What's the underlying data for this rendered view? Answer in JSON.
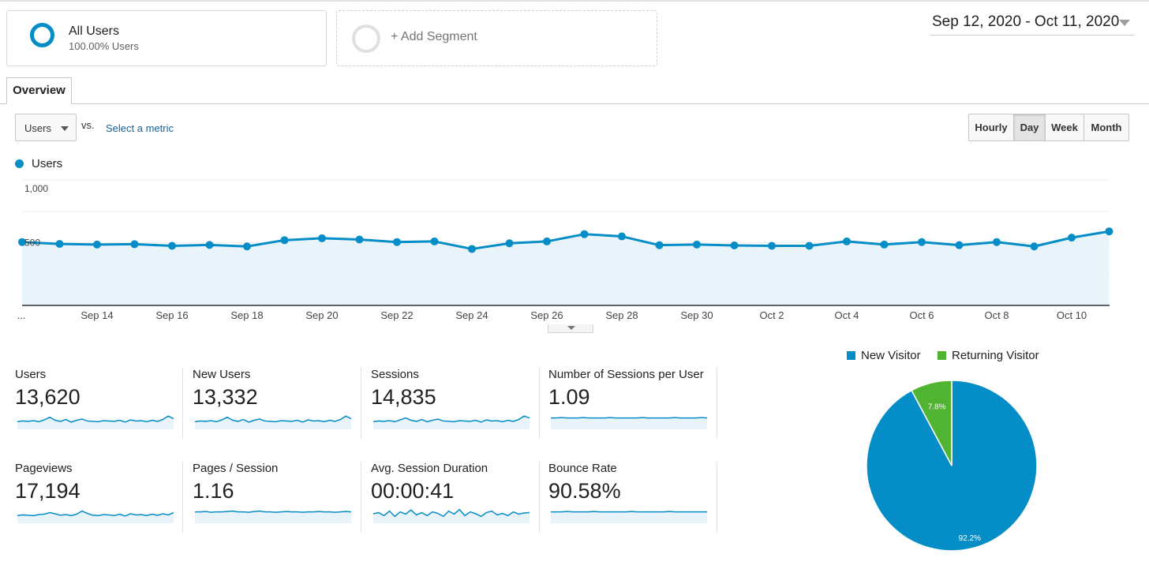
{
  "segments": {
    "all_users": {
      "title": "All Users",
      "subtitle": "100.00% Users"
    },
    "add_segment": "+ Add Segment"
  },
  "date_range": "Sep 12, 2020 - Oct 11, 2020",
  "tabs": [
    "Overview"
  ],
  "metric_selector": {
    "value": "Users",
    "vs": "vs.",
    "select_link": "Select a metric"
  },
  "granularity": {
    "options": [
      "Hourly",
      "Day",
      "Week",
      "Month"
    ],
    "selected": "Day"
  },
  "colors": {
    "accent": "#058dc7",
    "new_visitor": "#058dc7",
    "returning_visitor": "#50b432",
    "area_fill": "#e9f3fa"
  },
  "chart_data": [
    {
      "type": "line",
      "series": [
        {
          "name": "Users",
          "values": [
            505,
            490,
            485,
            488,
            475,
            482,
            470,
            520,
            535,
            525,
            505,
            510,
            450,
            495,
            510,
            568,
            550,
            480,
            485,
            478,
            475,
            475,
            510,
            485,
            505,
            480,
            505,
            470,
            540,
            590
          ]
        }
      ],
      "x": [
        "Sep 12",
        "Sep 13",
        "Sep 14",
        "Sep 15",
        "Sep 16",
        "Sep 17",
        "Sep 18",
        "Sep 19",
        "Sep 20",
        "Sep 21",
        "Sep 22",
        "Sep 23",
        "Sep 24",
        "Sep 25",
        "Sep 26",
        "Sep 27",
        "Sep 28",
        "Sep 29",
        "Sep 30",
        "Oct 1",
        "Oct 2",
        "Oct 3",
        "Oct 4",
        "Oct 5",
        "Oct 6",
        "Oct 7",
        "Oct 8",
        "Oct 9",
        "Oct 10",
        "Oct 11"
      ],
      "x_tick_labels": [
        "...",
        "Sep 14",
        "Sep 16",
        "Sep 18",
        "Sep 20",
        "Sep 22",
        "Sep 24",
        "Sep 26",
        "Sep 28",
        "Sep 30",
        "Oct 2",
        "Oct 4",
        "Oct 6",
        "Oct 8",
        "Oct 10"
      ],
      "y_tick_labels": [
        "1,000",
        "500"
      ],
      "ylim": [
        0,
        1000
      ],
      "grid": true
    },
    {
      "type": "pie",
      "labels": [
        "New Visitor",
        "Returning Visitor"
      ],
      "values": [
        92.2,
        7.8
      ],
      "data_labels": [
        "92.2%",
        "7.8%"
      ],
      "legend_position": "top"
    }
  ],
  "scorecards": [
    {
      "label": "Users",
      "value": "13,620",
      "spark": [
        40,
        42,
        41,
        43,
        40,
        45,
        52,
        44,
        41,
        46,
        39,
        44,
        47,
        42,
        41,
        40,
        43,
        42,
        41,
        44,
        39,
        45,
        42,
        43,
        40,
        44,
        41,
        46,
        55,
        48
      ]
    },
    {
      "label": "New Users",
      "value": "13,332",
      "spark": [
        40,
        42,
        41,
        43,
        40,
        45,
        52,
        44,
        41,
        46,
        39,
        44,
        47,
        42,
        41,
        40,
        43,
        42,
        41,
        44,
        39,
        45,
        42,
        43,
        40,
        44,
        41,
        46,
        55,
        48
      ]
    },
    {
      "label": "Sessions",
      "value": "14,835",
      "spark": [
        40,
        42,
        41,
        43,
        40,
        45,
        50,
        44,
        41,
        46,
        40,
        44,
        47,
        42,
        41,
        40,
        43,
        42,
        41,
        44,
        39,
        45,
        42,
        43,
        40,
        44,
        41,
        46,
        55,
        50
      ]
    },
    {
      "label": "Number of Sessions per User",
      "value": "1.09",
      "spark": [
        50,
        50,
        51,
        50,
        50,
        50,
        51,
        50,
        50,
        50,
        50,
        51,
        50,
        50,
        50,
        50,
        50,
        51,
        50,
        50,
        50,
        50,
        50,
        51,
        50,
        50,
        50,
        50,
        51,
        50
      ]
    },
    {
      "label": "Pageviews",
      "value": "17,194",
      "spark": [
        40,
        42,
        41,
        40,
        43,
        44,
        48,
        45,
        41,
        43,
        40,
        44,
        52,
        46,
        41,
        40,
        43,
        42,
        40,
        44,
        39,
        45,
        42,
        43,
        40,
        44,
        41,
        45,
        42,
        48
      ]
    },
    {
      "label": "Pages / Session",
      "value": "1.16",
      "spark": [
        50,
        50,
        51,
        49,
        50,
        50,
        51,
        52,
        50,
        50,
        49,
        51,
        52,
        50,
        50,
        49,
        50,
        51,
        50,
        50,
        49,
        50,
        50,
        51,
        50,
        50,
        49,
        50,
        51,
        50
      ]
    },
    {
      "label": "Avg. Session Duration",
      "value": "00:00:41",
      "spark": [
        45,
        48,
        40,
        52,
        38,
        50,
        44,
        55,
        42,
        48,
        40,
        50,
        46,
        38,
        52,
        44,
        56,
        40,
        50,
        45,
        38,
        48,
        52,
        42,
        46,
        40,
        50,
        44,
        47,
        48
      ]
    },
    {
      "label": "Bounce Rate",
      "value": "90.58%",
      "spark": [
        50,
        50,
        50,
        51,
        50,
        50,
        50,
        50,
        51,
        50,
        50,
        50,
        50,
        50,
        50,
        51,
        50,
        50,
        50,
        50,
        50,
        50,
        51,
        50,
        50,
        50,
        50,
        50,
        50,
        50
      ]
    }
  ]
}
